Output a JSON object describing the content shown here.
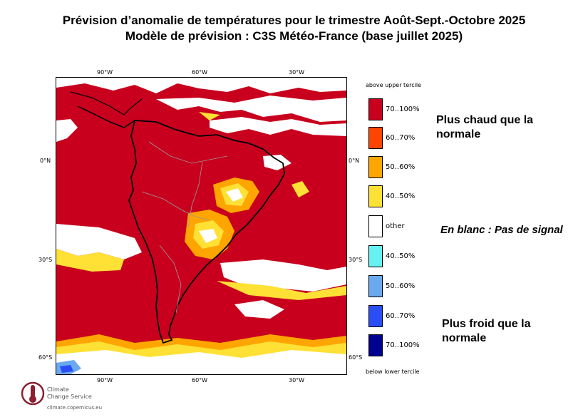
{
  "title_line1": "Prévision d’anomalie de températures pour le trimestre Août-Sept.-Octobre 2025",
  "title_line2": "Modèle de prévision : C3S Météo-France (base juillet 2025)",
  "map": {
    "lon_ticks": [
      "90°W",
      "60°W",
      "30°W"
    ],
    "lat_ticks": [
      "0°N",
      "30°S",
      "60°S"
    ],
    "colors": {
      "warm_70_100": "#c8001e",
      "warm_60_70": "#ff4500",
      "warm_50_60": "#ffa500",
      "warm_40_50": "#ffe135",
      "neutral": "#ffffff",
      "cold_40_50": "#66f2f2",
      "cold_50_60": "#6aa8f0",
      "cold_60_70": "#2a4df5",
      "cold_70_100": "#000090"
    }
  },
  "legend": {
    "top_caption": "above upper tercile",
    "bottom_caption": "below lower tercile",
    "items": [
      {
        "label": "70..100%",
        "color": "#c8001e"
      },
      {
        "label": "60..70%",
        "color": "#ff4500"
      },
      {
        "label": "50..60%",
        "color": "#ffa500"
      },
      {
        "label": "40..50%",
        "color": "#ffe135"
      },
      {
        "label": "other",
        "color": "#ffffff"
      },
      {
        "label": "40..50%",
        "color": "#66f2f2"
      },
      {
        "label": "50..60%",
        "color": "#6aa8f0"
      },
      {
        "label": "60..70%",
        "color": "#2a4df5"
      },
      {
        "label": "70..100%",
        "color": "#000090"
      }
    ]
  },
  "notes": {
    "warm": "Plus chaud que la normale",
    "white": "En blanc : Pas de signal",
    "cold": "Plus froid que la normale"
  },
  "logo": {
    "line1": "Climate",
    "line2": "Change Service",
    "url": "climate.copernicus.eu"
  }
}
